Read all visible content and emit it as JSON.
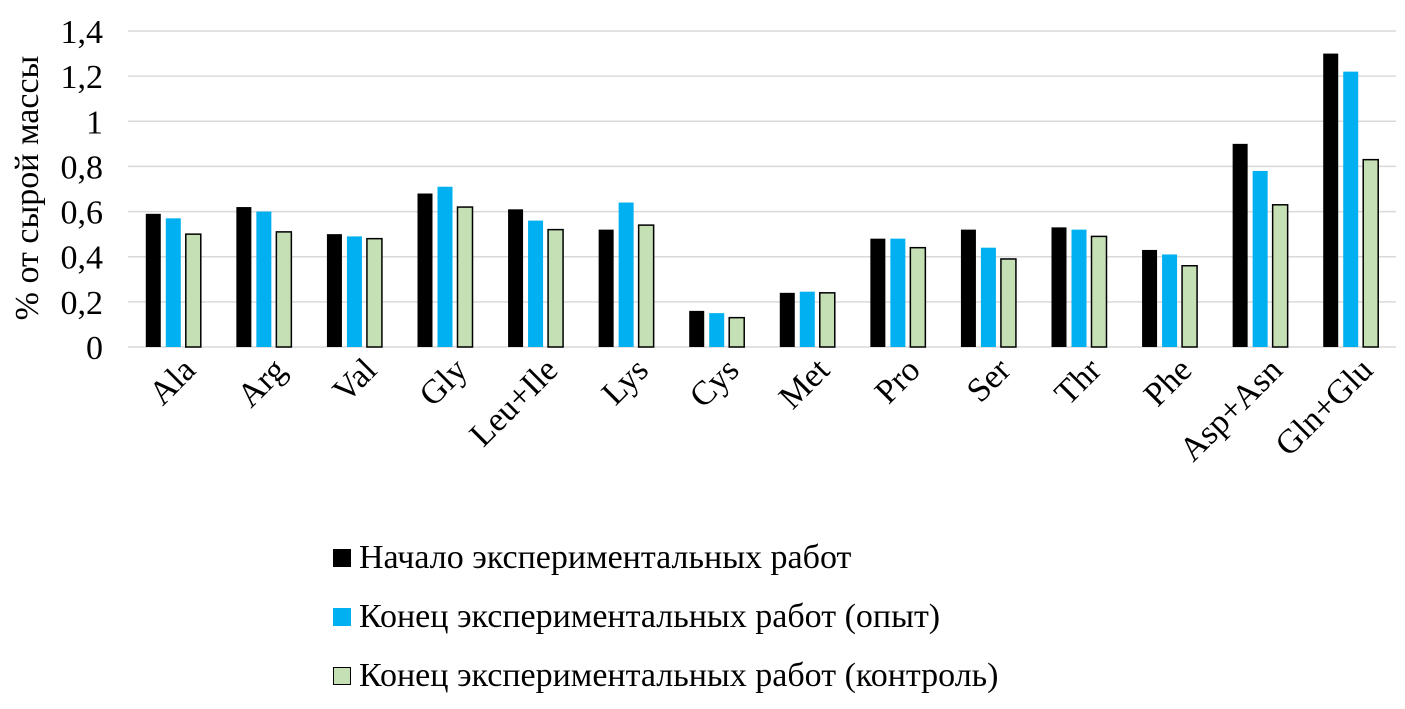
{
  "chart_data": {
    "type": "bar",
    "title": "",
    "xlabel": "",
    "ylabel": "% от сырой массы",
    "ylim": [
      0,
      1.4
    ],
    "yticks": [
      "0",
      "0,2",
      "0,4",
      "0,6",
      "0,8",
      "1",
      "1,2",
      "1,4"
    ],
    "grid": true,
    "legend_position": "bottom",
    "categories": [
      "Ala",
      "Arg",
      "Val",
      "Gly",
      "Leu+Ile",
      "Lys",
      "Cys",
      "Met",
      "Pro",
      "Ser",
      "Thr",
      "Phe",
      "Asp+Asn",
      "Gln+Glu"
    ],
    "series": [
      {
        "name": "Начало экспериментальных работ",
        "color": "#000000",
        "values": [
          0.59,
          0.62,
          0.5,
          0.68,
          0.61,
          0.52,
          0.16,
          0.24,
          0.48,
          0.52,
          0.53,
          0.43,
          0.9,
          1.3
        ]
      },
      {
        "name": "Конец экспериментальных работ (опыт)",
        "color": "#00b0f0",
        "values": [
          0.57,
          0.6,
          0.49,
          0.71,
          0.56,
          0.64,
          0.15,
          0.245,
          0.48,
          0.44,
          0.52,
          0.41,
          0.78,
          1.22
        ]
      },
      {
        "name": "Конец экспериментальных работ (контроль)",
        "color": "#c5e0b4",
        "values": [
          0.5,
          0.51,
          0.48,
          0.62,
          0.52,
          0.54,
          0.13,
          0.24,
          0.44,
          0.39,
          0.49,
          0.36,
          0.63,
          0.83
        ]
      }
    ]
  }
}
